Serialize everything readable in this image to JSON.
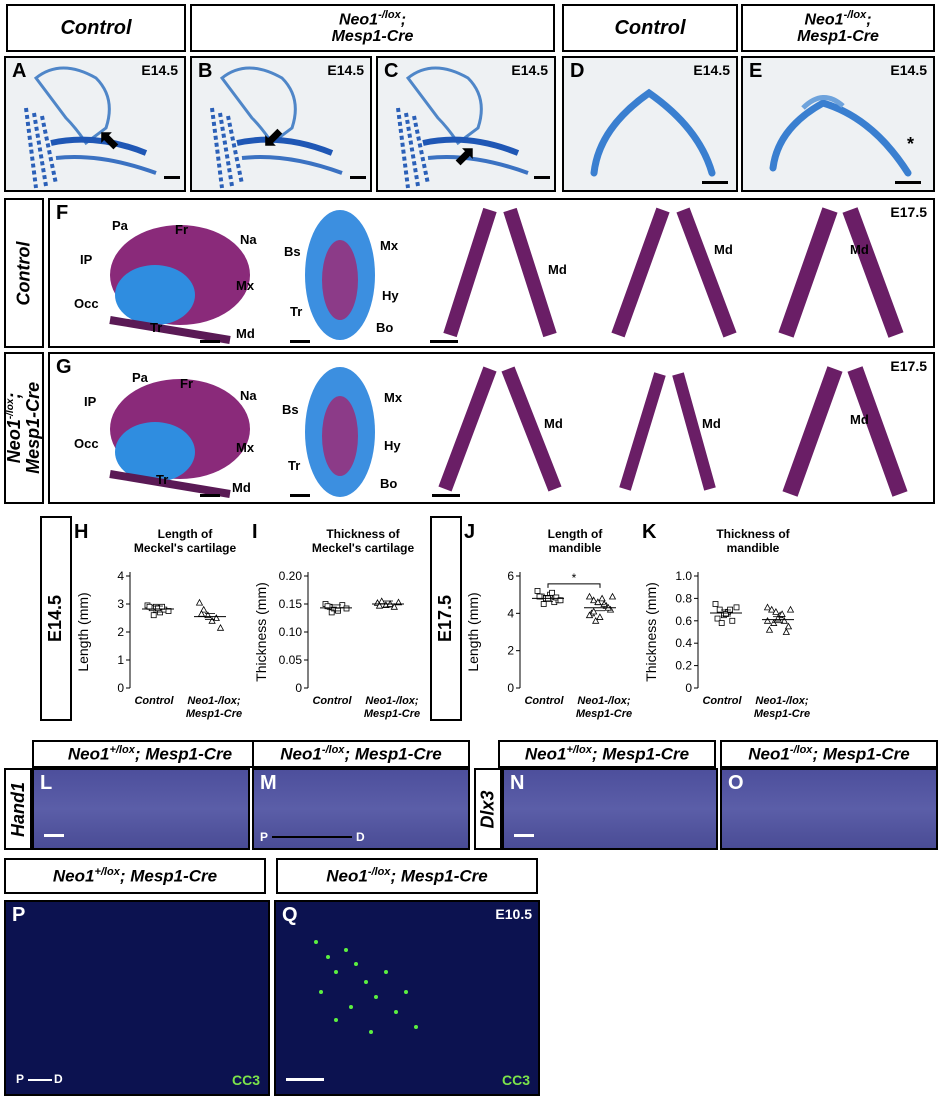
{
  "headers": {
    "control": "Control",
    "mutant_line1": "Neo1",
    "mutant_sup": "-/lox",
    "mutant_line2": "; Mesp1-Cre",
    "mutant_line2b": "Mesp1-Cre"
  },
  "panels": {
    "A": "A",
    "B": "B",
    "C": "C",
    "D": "D",
    "E": "E",
    "F": "F",
    "G": "G",
    "H": "H",
    "I": "I",
    "J": "J",
    "K": "K",
    "L": "L",
    "M": "M",
    "N": "N",
    "O": "O",
    "P": "P",
    "Q": "Q"
  },
  "stages": {
    "e145": "E14.5",
    "e175": "E17.5",
    "e105": "E10.5"
  },
  "row_labels": {
    "e145": "E14.5",
    "e175": "E17.5",
    "hand1": "Hand1",
    "dlx3": "Dlx3"
  },
  "anatomy": {
    "pa": "Pa",
    "fr": "Fr",
    "na": "Na",
    "ip": "IP",
    "mx": "Mx",
    "occ": "Occ",
    "tr": "Tr",
    "md": "Md",
    "bs": "Bs",
    "hy": "Hy",
    "bo": "Bo"
  },
  "lower_headers": {
    "het_a": "Neo1",
    "het_sup": "+/lox",
    "het_b": "; Mesp1-Cre",
    "mut_a": "Neo1",
    "mut_sup": "-/lox",
    "mut_b": "; Mesp1-Cre"
  },
  "axis_label": "P",
  "axis_label2": "D",
  "cc3": "CC3",
  "asterisk": "*",
  "chart_data": [
    {
      "panel": "H",
      "type": "scatter",
      "title": "Length of Meckel's cartilage",
      "ylabel": "Length (mm)",
      "categories": [
        "Control",
        "Neo1-/lox; Mesp1-Cre"
      ],
      "ylim": [
        0,
        4
      ],
      "yticks": [
        0,
        1,
        2,
        3,
        4
      ],
      "series": [
        {
          "marker": "square",
          "values": [
            2.95,
            2.85,
            2.9,
            2.7,
            2.8,
            2.75,
            2.9,
            2.6,
            2.85,
            2.9
          ],
          "mean": 2.82
        },
        {
          "marker": "triangle",
          "values": [
            3.05,
            2.8,
            2.6,
            2.4,
            2.5,
            2.15,
            2.65
          ],
          "mean": 2.55
        }
      ]
    },
    {
      "panel": "I",
      "type": "scatter",
      "title": "Thickness of Meckel's cartilage",
      "ylabel": "Thickness (mm)",
      "categories": [
        "Control",
        "Neo1-/lox; Mesp1-Cre"
      ],
      "ylim": [
        0,
        0.2
      ],
      "yticks": [
        0,
        0.05,
        0.1,
        0.15,
        0.2
      ],
      "series": [
        {
          "marker": "square",
          "values": [
            0.15,
            0.145,
            0.14,
            0.138,
            0.148,
            0.142,
            0.146,
            0.135
          ],
          "mean": 0.143
        },
        {
          "marker": "triangle",
          "values": [
            0.152,
            0.155,
            0.148,
            0.15,
            0.145,
            0.153,
            0.147
          ],
          "mean": 0.15
        }
      ]
    },
    {
      "panel": "J",
      "type": "scatter",
      "title": "Length of mandible",
      "ylabel": "Length (mm)",
      "categories": [
        "Control",
        "Neo1-/lox; Mesp1-Cre"
      ],
      "ylim": [
        0,
        6
      ],
      "yticks": [
        0,
        2,
        4,
        6
      ],
      "significance": "*",
      "series": [
        {
          "marker": "square",
          "values": [
            5.2,
            4.9,
            4.8,
            5.0,
            4.6,
            4.7,
            4.9,
            4.5,
            4.8,
            5.1,
            4.85,
            4.7
          ],
          "mean": 4.8
        },
        {
          "marker": "triangle",
          "values": [
            4.9,
            4.7,
            4.6,
            4.8,
            4.4,
            4.2,
            4.0,
            3.6,
            3.8,
            4.5,
            4.3,
            4.9,
            3.9,
            4.1
          ],
          "mean": 4.3
        }
      ]
    },
    {
      "panel": "K",
      "type": "scatter",
      "title": "Thickness of mandible",
      "ylabel": "Thickness (mm)",
      "categories": [
        "Control",
        "Neo1-/lox; Mesp1-Cre"
      ],
      "ylim": [
        0,
        1.0
      ],
      "yticks": [
        0,
        0.2,
        0.4,
        0.6,
        0.8,
        1.0
      ],
      "series": [
        {
          "marker": "square",
          "values": [
            0.75,
            0.7,
            0.65,
            0.68,
            0.6,
            0.72,
            0.62,
            0.58,
            0.66,
            0.7
          ],
          "mean": 0.67
        },
        {
          "marker": "triangle",
          "values": [
            0.72,
            0.7,
            0.68,
            0.65,
            0.6,
            0.55,
            0.52,
            0.58,
            0.62,
            0.66,
            0.5,
            0.7,
            0.6
          ],
          "mean": 0.61
        }
      ]
    }
  ]
}
